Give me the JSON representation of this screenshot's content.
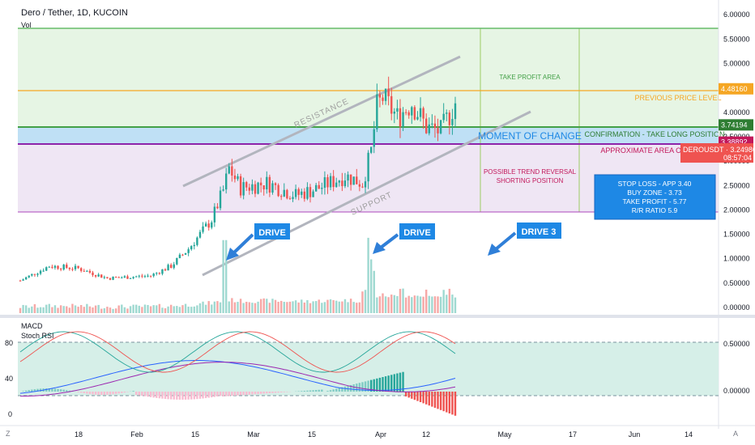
{
  "header": {
    "title": "Dero / Tether, 1D, KUCOIN",
    "vol_label": "Vol"
  },
  "indicators": {
    "macd_label": "MACD",
    "rsi_label": "Stoch RSI"
  },
  "corner": {
    "left_btn": "Z",
    "right_btn": "A"
  },
  "colors": {
    "bull": "#26a69a",
    "bear": "#ef5350",
    "tp_area": "#e6f5e4",
    "mid_area": "#eadff0",
    "blue_band": "#bfe0f5",
    "green_line": "#66bb6a",
    "orange_line": "#f5a623",
    "purple_line": "#9c27b0",
    "channel": "#b2b5be",
    "arrow": "#2f7fd8"
  },
  "chart_data": [
    {
      "type": "candlestick",
      "title": "Dero / Tether, 1D, KUCOIN",
      "y_axis": {
        "min": 0,
        "max": 6,
        "ticks": [
          "6.00000",
          "5.50000",
          "5.00000",
          "4.50000",
          "4.00000",
          "3.50000",
          "3.00000",
          "2.50000",
          "2.00000",
          "1.50000",
          "1.00000",
          "0.50000",
          "0.00000"
        ]
      },
      "x_axis_ticks": [
        "18",
        "Feb",
        "15",
        "Mar",
        "15",
        "Apr",
        "12",
        "May",
        "17",
        "Jun",
        "14"
      ],
      "price_tags": [
        {
          "value": 4.4816,
          "label": "4.48160",
          "color": "#f5a623"
        },
        {
          "value": 3.74194,
          "label": "3.74194",
          "color": "#2e7d32"
        },
        {
          "value": 3.38892,
          "label": "3.38892",
          "color": "#c2185b"
        },
        {
          "value": 3.24986,
          "label": "DEROUSDT · 3.24986",
          "sub": "08:57:04",
          "color": "#ef5350"
        }
      ],
      "levels": {
        "take_profit": 5.77,
        "previous_price": 4.4816,
        "confirmation": 3.74194,
        "mid": 3.38892,
        "bottom": 2.0
      },
      "annotations": {
        "resistance": "RESISTANCE",
        "support": "SUPPORT",
        "take_profit_area": "TAKE PROFIT AREA",
        "previous_price_level": "PREVIOUS PRICE LEVEL",
        "moment_of_change": "MOMENT OF CHANGE",
        "confirmation": "CONFIRMATION - TAKE LONG POSITION",
        "approx_area": "APPROXIMATE AREA OF",
        "reversal_line1": "POSSIBLE TREND REVERSAL",
        "reversal_line2": "SHORTING POSITION",
        "drive1": "DRIVE",
        "drive2": "DRIVE",
        "drive3": "DRIVE 3",
        "info_box": [
          "STOP LOSS - APP 3.40",
          "BUY ZONE - 3.73",
          "TAKE PROFIT - 5.77",
          "R/R RATIO 5.9"
        ]
      }
    },
    {
      "type": "line",
      "title": "MACD / Stoch RSI",
      "rsi_ticks": [
        "80",
        "40",
        "0"
      ],
      "macd_ticks": [
        "0.50000",
        "0.00000"
      ]
    }
  ]
}
